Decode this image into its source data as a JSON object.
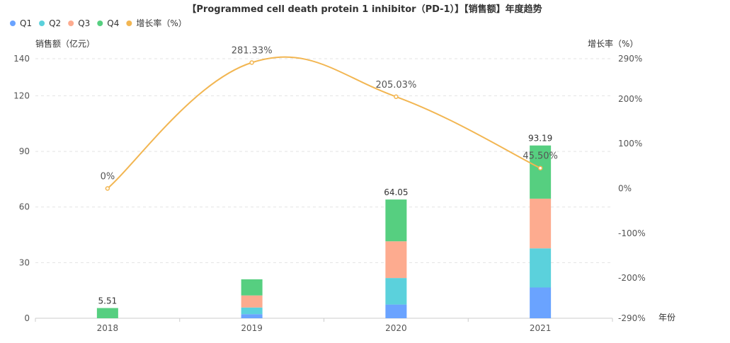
{
  "chart_data": {
    "type": "bar",
    "title": "【Programmed cell death protein 1 inhibitor（PD-1）】【销售额】年度趋势",
    "xlabel": "年份",
    "ylabel": "销售额（亿元）",
    "y2label": "增长率（%）",
    "categories": [
      "2018",
      "2019",
      "2020",
      "2021"
    ],
    "stacked": true,
    "series": [
      {
        "name": "Q1",
        "color": "#6aa3ff",
        "values": [
          0,
          2.2,
          7.4,
          16.6
        ]
      },
      {
        "name": "Q2",
        "color": "#5bd1dc",
        "values": [
          0,
          3.6,
          14.3,
          21.1
        ]
      },
      {
        "name": "Q3",
        "color": "#fdab8f",
        "values": [
          0,
          6.5,
          19.8,
          26.8
        ]
      },
      {
        "name": "Q4",
        "color": "#56cf80",
        "values": [
          5.51,
          8.7,
          22.55,
          28.69
        ]
      }
    ],
    "totals": [
      "5.51",
      null,
      "64.05",
      "93.19"
    ],
    "line": {
      "name": "增长率（%）",
      "color": "#f2b652",
      "values": [
        0,
        281.33,
        205.03,
        45.5
      ],
      "labels": [
        "0%",
        "281.33%",
        "205.03%",
        "45.50%"
      ]
    },
    "ylim": [
      0,
      140
    ],
    "y_ticks": [
      "0",
      "30",
      "60",
      "90",
      "120",
      "140"
    ],
    "y_tick_values": [
      0,
      30,
      60,
      90,
      120,
      140
    ],
    "y2_ticks": [
      "-290%",
      "-200%",
      "-100%",
      "0%",
      "100%",
      "200%",
      "290%"
    ],
    "y2_tick_values": [
      -290,
      -200,
      -100,
      0,
      100,
      200,
      290
    ],
    "y2lim": [
      -290,
      290
    ],
    "grid": true,
    "legend_position": "top-left"
  }
}
